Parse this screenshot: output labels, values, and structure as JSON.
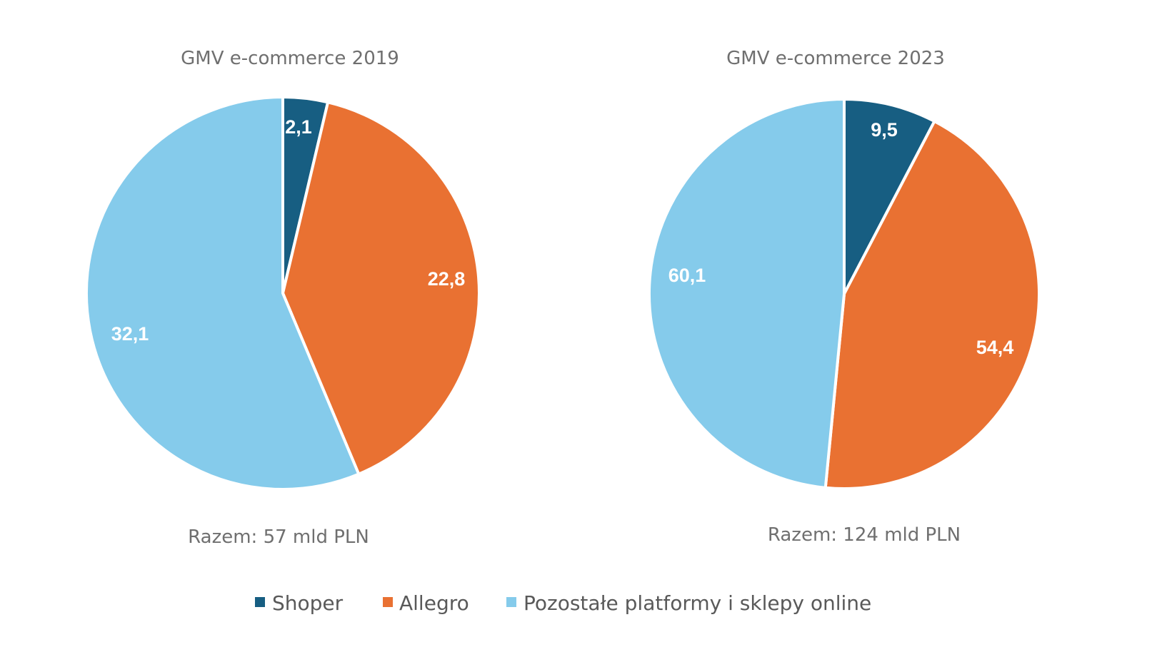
{
  "chart_data": [
    {
      "type": "pie",
      "title": "GMV e-commerce 2019",
      "categories": [
        "Shoper",
        "Allegro",
        "Pozostałe platformy i sklepy online"
      ],
      "values": [
        2.1,
        22.8,
        32.1
      ],
      "labels": [
        "2,1",
        "22,8",
        "32,1"
      ],
      "total_label": "Razem: 57 mld PLN"
    },
    {
      "type": "pie",
      "title": "GMV e-commerce 2023",
      "categories": [
        "Shoper",
        "Allegro",
        "Pozostałe platformy i sklepy online"
      ],
      "values": [
        9.5,
        54.4,
        60.1
      ],
      "labels": [
        "9,5",
        "54,4",
        "60,1"
      ],
      "total_label": "Razem: 124 mld PLN"
    }
  ],
  "legend": {
    "placement": "bottom",
    "items": [
      {
        "label": "Shoper",
        "color": "#175E82"
      },
      {
        "label": "Allegro",
        "color": "#E97132"
      },
      {
        "label": "Pozostałe platformy i sklepy online",
        "color": "#85CBEB"
      }
    ]
  },
  "colors": [
    "#175E82",
    "#E97132",
    "#85CBEB"
  ]
}
